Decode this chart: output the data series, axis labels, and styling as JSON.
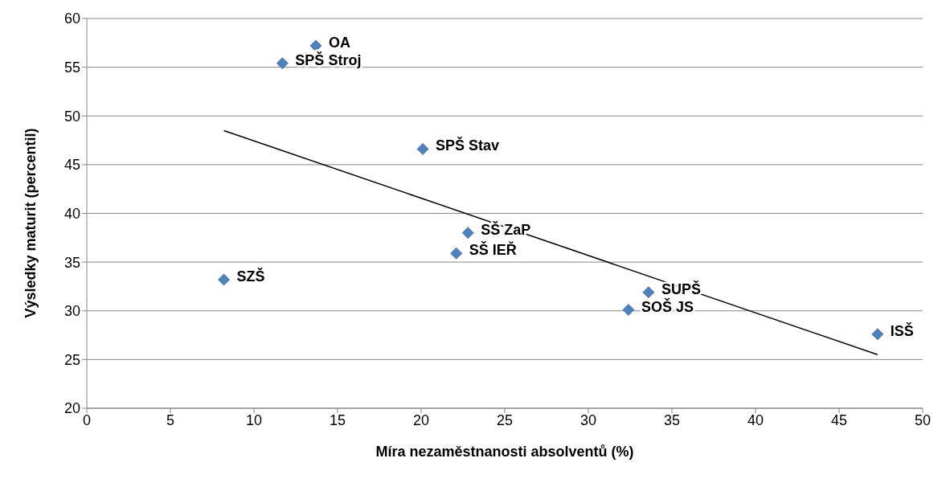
{
  "chart_data": {
    "type": "scatter",
    "xlabel": "Míra nezaměstnanosti absolventů (%)",
    "ylabel": "Výsledky maturit (percentil)",
    "xlim": [
      0,
      50
    ],
    "xticks": [
      0,
      5,
      10,
      15,
      20,
      25,
      30,
      35,
      40,
      45,
      50
    ],
    "ylim": [
      20,
      60
    ],
    "yticks": [
      20,
      25,
      30,
      35,
      40,
      45,
      50,
      55,
      60
    ],
    "grid": "y",
    "series": [
      {
        "marker": "diamond",
        "color": "#4f81bd",
        "x": [
          13.7,
          11.7,
          20.1,
          22.8,
          22.1,
          8.2,
          33.6,
          32.4,
          47.3
        ],
        "values": [
          57.2,
          55.4,
          46.6,
          38.0,
          35.9,
          33.2,
          31.9,
          30.1,
          27.6
        ]
      },
      {
        "type": "line",
        "marker": "none",
        "color": "#000000",
        "x": [
          8.2,
          47.3
        ],
        "values": [
          48.5,
          25.5
        ]
      }
    ],
    "annotations": [
      {
        "text": "OA",
        "x": 13.7,
        "y": 57.2
      },
      {
        "text": "SPŠ Stroj",
        "x": 11.7,
        "y": 55.4
      },
      {
        "text": "SPŠ Stav",
        "x": 20.1,
        "y": 46.6
      },
      {
        "text": "SŠ ZaP",
        "x": 22.8,
        "y": 38.0
      },
      {
        "text": "SŠ IEŘ",
        "x": 22.1,
        "y": 35.9
      },
      {
        "text": "SZŠ",
        "x": 8.2,
        "y": 33.2
      },
      {
        "text": "SUPŠ",
        "x": 33.6,
        "y": 31.9
      },
      {
        "text": "SOŠ JS",
        "x": 32.4,
        "y": 30.1
      },
      {
        "text": "ISŠ",
        "x": 47.3,
        "y": 27.6
      }
    ]
  }
}
